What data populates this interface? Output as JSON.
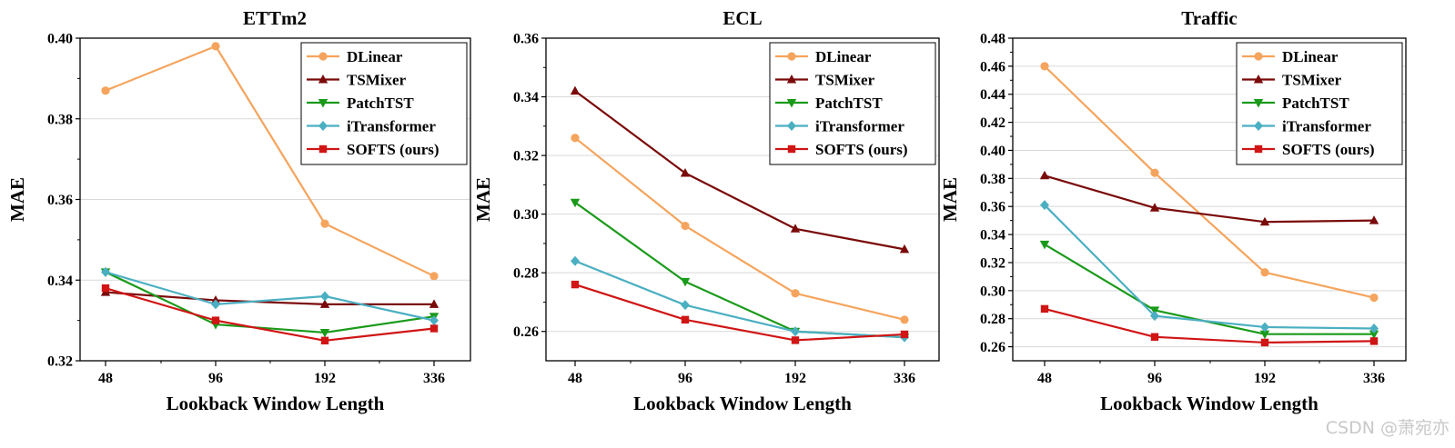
{
  "colors": {
    "DLinear": "#F5A45D",
    "TSMixer": "#7A0A0A",
    "PatchTST": "#1A9A1A",
    "iTransformer": "#4BAFC2",
    "SOFTS (ours)": "#D01515"
  },
  "markers": {
    "DLinear": "circle",
    "TSMixer": "triangle-up",
    "PatchTST": "triangle-down",
    "iTransformer": "diamond",
    "SOFTS (ours)": "square"
  },
  "watermark": "CSDN @萧宛亦",
  "chart_data": [
    {
      "type": "line",
      "title": "ETTm2",
      "xlabel": "Lookback Window Length",
      "ylabel": "MAE",
      "categories": [
        "48",
        "96",
        "192",
        "336"
      ],
      "ylim": [
        0.32,
        0.4
      ],
      "yticks": [
        "0.32",
        "0.34",
        "0.36",
        "0.38",
        "0.40"
      ],
      "legend_position": "top-right",
      "series": [
        {
          "name": "DLinear",
          "values": [
            0.387,
            0.398,
            0.354,
            0.341
          ]
        },
        {
          "name": "TSMixer",
          "values": [
            0.337,
            0.335,
            0.334,
            0.334
          ]
        },
        {
          "name": "PatchTST",
          "values": [
            0.342,
            0.329,
            0.327,
            0.331
          ]
        },
        {
          "name": "iTransformer",
          "values": [
            0.342,
            0.334,
            0.336,
            0.33
          ]
        },
        {
          "name": "SOFTS (ours)",
          "values": [
            0.338,
            0.33,
            0.325,
            0.328
          ]
        }
      ]
    },
    {
      "type": "line",
      "title": "ECL",
      "xlabel": "Lookback Window Length",
      "ylabel": "MAE",
      "categories": [
        "48",
        "96",
        "192",
        "336"
      ],
      "ylim": [
        0.25,
        0.36
      ],
      "yticks": [
        "0.26",
        "0.28",
        "0.30",
        "0.32",
        "0.34",
        "0.36"
      ],
      "legend_position": "top-right",
      "series": [
        {
          "name": "DLinear",
          "values": [
            0.326,
            0.296,
            0.273,
            0.264
          ]
        },
        {
          "name": "TSMixer",
          "values": [
            0.342,
            0.314,
            0.295,
            0.288
          ]
        },
        {
          "name": "PatchTST",
          "values": [
            0.304,
            0.277,
            0.26,
            0.258
          ]
        },
        {
          "name": "iTransformer",
          "values": [
            0.284,
            0.269,
            0.26,
            0.258
          ]
        },
        {
          "name": "SOFTS (ours)",
          "values": [
            0.276,
            0.264,
            0.257,
            0.259
          ]
        }
      ]
    },
    {
      "type": "line",
      "title": "Traffic",
      "xlabel": "Lookback Window Length",
      "ylabel": "MAE",
      "categories": [
        "48",
        "96",
        "192",
        "336"
      ],
      "ylim": [
        0.25,
        0.48
      ],
      "yticks": [
        "0.26",
        "0.28",
        "0.30",
        "0.32",
        "0.34",
        "0.36",
        "0.38",
        "0.40",
        "0.42",
        "0.44",
        "0.46",
        "0.48"
      ],
      "legend_position": "top-right",
      "series": [
        {
          "name": "DLinear",
          "values": [
            0.46,
            0.384,
            0.313,
            0.295
          ]
        },
        {
          "name": "TSMixer",
          "values": [
            0.382,
            0.359,
            0.349,
            0.35
          ]
        },
        {
          "name": "PatchTST",
          "values": [
            0.333,
            0.286,
            0.269,
            0.269
          ]
        },
        {
          "name": "iTransformer",
          "values": [
            0.361,
            0.282,
            0.274,
            0.273
          ]
        },
        {
          "name": "SOFTS (ours)",
          "values": [
            0.287,
            0.267,
            0.263,
            0.264
          ]
        }
      ]
    }
  ]
}
